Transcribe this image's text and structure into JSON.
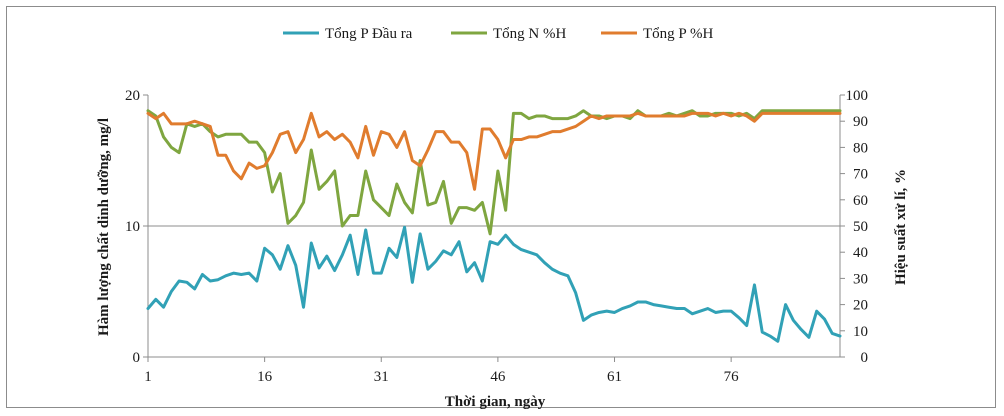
{
  "chart_data": {
    "type": "line",
    "title": "",
    "xlabel": "Thời gian, ngày",
    "ylabel_left": "Hàm lượng chất dinh dưỡng, mg/l",
    "ylabel_right": "Hiệu suất xử lí, %",
    "x_ticks": [
      1,
      16,
      31,
      46,
      61,
      76
    ],
    "y_left_ticks": [
      0,
      10,
      20
    ],
    "y_right_ticks": [
      0,
      10,
      20,
      30,
      40,
      50,
      60,
      70,
      80,
      90,
      100
    ],
    "xlim": [
      1,
      90
    ],
    "ylim_left": [
      0,
      20
    ],
    "ylim_right": [
      0,
      100
    ],
    "grid": "horizontal at 10 (left axis)",
    "legend_position": "top",
    "x": [
      1,
      2,
      3,
      4,
      5,
      6,
      7,
      8,
      9,
      10,
      11,
      12,
      13,
      14,
      15,
      16,
      17,
      18,
      19,
      20,
      21,
      22,
      23,
      24,
      25,
      26,
      27,
      28,
      29,
      30,
      31,
      32,
      33,
      34,
      35,
      36,
      37,
      38,
      39,
      40,
      41,
      42,
      43,
      44,
      45,
      46,
      47,
      48,
      49,
      50,
      51,
      52,
      53,
      54,
      55,
      56,
      57,
      58,
      59,
      60,
      61,
      62,
      63,
      64,
      65,
      66,
      67,
      68,
      69,
      70,
      71,
      72,
      73,
      74,
      75,
      76,
      77,
      78,
      79,
      80,
      81,
      82,
      83,
      84,
      85,
      86,
      87,
      88,
      89,
      90
    ],
    "series": [
      {
        "name": "Tổng P Đầu ra",
        "axis": "left",
        "color": "#31a1b6",
        "values": [
          3.7,
          4.4,
          3.8,
          5.0,
          5.8,
          5.7,
          5.2,
          6.3,
          5.8,
          5.9,
          6.2,
          6.4,
          6.3,
          6.4,
          5.8,
          8.3,
          7.8,
          6.7,
          8.5,
          7.0,
          3.8,
          8.7,
          6.8,
          7.7,
          6.6,
          7.8,
          9.3,
          6.3,
          9.7,
          6.4,
          6.4,
          8.3,
          7.6,
          9.9,
          5.7,
          9.4,
          6.7,
          7.3,
          8.1,
          7.8,
          8.8,
          6.5,
          7.2,
          5.8,
          8.8,
          8.6,
          9.3,
          8.6,
          8.2,
          8.0,
          7.8,
          7.2,
          6.7,
          6.4,
          6.2,
          4.9,
          2.8,
          3.2,
          3.4,
          3.5,
          3.4,
          3.7,
          3.9,
          4.2,
          4.2,
          4.0,
          3.9,
          3.8,
          3.7,
          3.7,
          3.3,
          3.5,
          3.7,
          3.4,
          3.5,
          3.5,
          3.0,
          2.4,
          5.5,
          1.9,
          1.6,
          1.2,
          4.0,
          2.8,
          2.1,
          1.5,
          3.5,
          2.9,
          1.8,
          1.6
        ]
      },
      {
        "name": "Tổng N %H",
        "axis": "right",
        "color": "#7fa640",
        "values": [
          94,
          92,
          84,
          80,
          78,
          89,
          88,
          89,
          86,
          84,
          85,
          85,
          85,
          82,
          82,
          78,
          63,
          70,
          51,
          54,
          59,
          79,
          64,
          67,
          71,
          50,
          54,
          54,
          71,
          60,
          57,
          54,
          66,
          59,
          55,
          75,
          58,
          59,
          67,
          51,
          57,
          57,
          56,
          59,
          47,
          71,
          56,
          93,
          93,
          91,
          92,
          92,
          91,
          91,
          91,
          92,
          94,
          92,
          92,
          91,
          92,
          92,
          91,
          94,
          92,
          92,
          92,
          93,
          92,
          93,
          94,
          92,
          92,
          93,
          93,
          93,
          92,
          93,
          91,
          94,
          94,
          94,
          94,
          94,
          94,
          94,
          94,
          94,
          94,
          94
        ]
      },
      {
        "name": "Tổng P %H",
        "axis": "right",
        "color": "#e07c2e",
        "values": [
          93,
          91,
          93,
          89,
          89,
          89,
          90,
          89,
          88,
          77,
          77,
          71,
          68,
          74,
          72,
          73,
          78,
          85,
          86,
          78,
          83,
          93,
          84,
          86,
          83,
          85,
          82,
          76,
          88,
          77,
          86,
          85,
          80,
          86,
          75,
          73,
          79,
          86,
          86,
          82,
          82,
          78,
          64,
          87,
          87,
          83,
          76,
          83,
          83,
          84,
          84,
          85,
          86,
          86,
          87,
          88,
          90,
          92,
          91,
          92,
          92,
          92,
          92,
          93,
          92,
          92,
          92,
          92,
          92,
          92,
          93,
          93,
          93,
          92,
          93,
          92,
          93,
          92,
          90,
          93,
          93,
          93,
          93,
          93,
          93,
          93,
          93,
          93,
          93,
          93
        ]
      }
    ]
  }
}
